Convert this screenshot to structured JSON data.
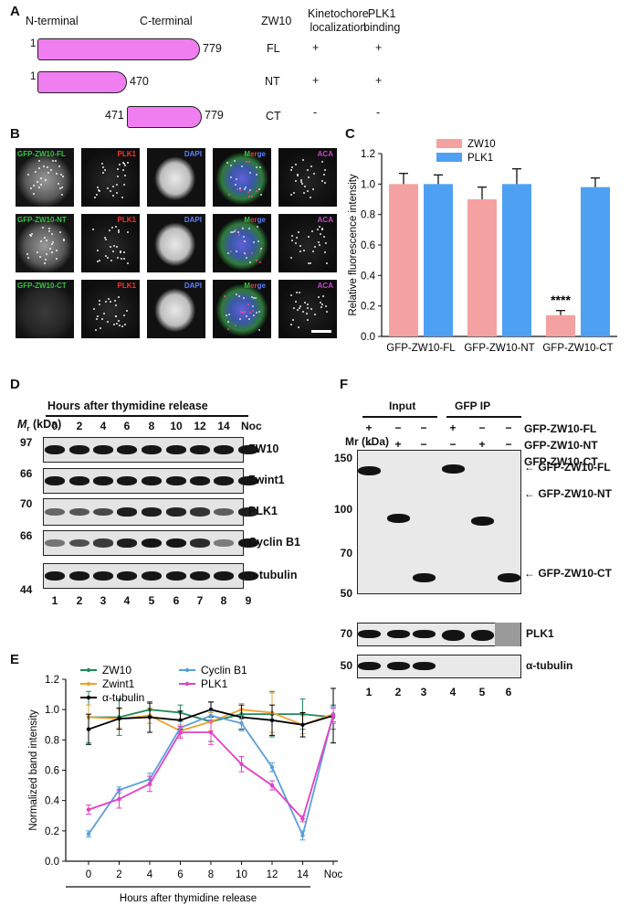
{
  "panelA": {
    "label": "A",
    "n_term": "N-terminal",
    "c_term": "C-terminal",
    "headers": [
      "ZW10",
      "Kinetochore\nlocalization",
      "PLK1\nbinding"
    ],
    "rows": [
      {
        "start": "1",
        "end": "779",
        "name": "FL",
        "kt": "+",
        "plk": "+"
      },
      {
        "start": "1",
        "end": "470",
        "name": "NT",
        "kt": "+",
        "plk": "+"
      },
      {
        "start": "471",
        "end": "779",
        "name": "CT",
        "kt": "-",
        "plk": "-"
      }
    ]
  },
  "panelB": {
    "label": "B",
    "rows": [
      "GFP-ZW10-FL",
      "GFP-ZW10-NT",
      "GFP-ZW10-CT"
    ],
    "channels": [
      "PLK1",
      "DAPI",
      "Merge",
      "ACA"
    ]
  },
  "panelD": {
    "label": "D",
    "title": "Hours after thymidine release",
    "mr": "Mr (kDa)",
    "timepoints": [
      "0",
      "2",
      "4",
      "6",
      "8",
      "10",
      "12",
      "14",
      "Noc"
    ],
    "markers": [
      "97",
      "66",
      "70",
      "66",
      "44"
    ],
    "proteins": [
      "ZW10",
      "Zwint1",
      "PLK1",
      "Cyclin B1",
      "α-tubulin"
    ],
    "lanes": [
      "1",
      "2",
      "3",
      "4",
      "5",
      "6",
      "7",
      "8",
      "9"
    ]
  },
  "panelF": {
    "label": "F",
    "input": "Input",
    "gfpip": "GFP IP",
    "mr": "Mr (kDa)",
    "row_labels": [
      "GFP-ZW10-FL",
      "GFP-ZW10-NT",
      "GFP-ZW10-CT"
    ],
    "signs": [
      [
        "+",
        "−",
        "−",
        "+",
        "−",
        "−"
      ],
      [
        "−",
        "+",
        "−",
        "−",
        "+",
        "−"
      ],
      [
        "−",
        "−",
        "+",
        "−",
        "−",
        "+"
      ]
    ],
    "markers": [
      "150",
      "100",
      "70",
      "50"
    ],
    "arrows": [
      "GFP-ZW10-FL",
      "GFP-ZW10-NT",
      "GFP-ZW10-CT"
    ],
    "small_markers": [
      "70",
      "50"
    ],
    "small_labels": [
      "PLK1",
      "α-tubulin"
    ],
    "lanes": [
      "1",
      "2",
      "3",
      "4",
      "5",
      "6"
    ]
  },
  "chart_data": [
    {
      "panel": "C",
      "type": "bar",
      "categories": [
        "GFP-ZW10-FL",
        "GFP-ZW10-NT",
        "GFP-ZW10-CT"
      ],
      "series": [
        {
          "name": "ZW10",
          "values": [
            1.0,
            0.9,
            0.14
          ],
          "errors": [
            0.07,
            0.08,
            0.03
          ],
          "color": "#f4a1a1"
        },
        {
          "name": "PLK1",
          "values": [
            1.0,
            1.0,
            0.98
          ],
          "errors": [
            0.06,
            0.1,
            0.06
          ],
          "color": "#4ea1f2"
        }
      ],
      "annotation": "****",
      "ylabel": "Relative fluorescence intensity",
      "ylim": [
        0,
        1.2
      ],
      "yticks": [
        "0.0",
        "0.2",
        "0.4",
        "0.6",
        "0.8",
        "1.0",
        "1.2"
      ]
    },
    {
      "panel": "E",
      "type": "line",
      "x": [
        "0",
        "2",
        "4",
        "6",
        "8",
        "10",
        "12",
        "14",
        "Noc"
      ],
      "series": [
        {
          "name": "ZW10",
          "color": "#1f8a5a",
          "values": [
            0.95,
            0.95,
            1.0,
            0.98,
            0.92,
            0.97,
            0.97,
            0.97,
            0.95
          ],
          "errors": [
            0.17,
            0.12,
            0.04,
            0.05,
            0.13,
            0.03,
            0.15,
            0.1,
            0.08
          ]
        },
        {
          "name": "Zwint1",
          "color": "#f0a030",
          "values": [
            0.95,
            0.94,
            0.96,
            0.86,
            0.92,
            1.0,
            0.98,
            0.9,
            0.97
          ],
          "errors": [
            0.08,
            0.06,
            0.05,
            0.04,
            0.06,
            0.04,
            0.13,
            0.06,
            0.05
          ]
        },
        {
          "name": "α-tubulin",
          "color": "#000000",
          "values": [
            0.87,
            0.94,
            0.95,
            0.93,
            1.0,
            0.95,
            0.93,
            0.9,
            0.96
          ],
          "errors": [
            0.1,
            0.07,
            0.1,
            0.06,
            0.05,
            0.08,
            0.1,
            0.08,
            0.18
          ]
        },
        {
          "name": "Cyclin B1",
          "color": "#5aa0d8",
          "values": [
            0.18,
            0.47,
            0.54,
            0.88,
            0.96,
            0.91,
            0.62,
            0.17,
            0.97
          ],
          "errors": [
            0.02,
            0.02,
            0.04,
            0.04,
            0.03,
            0.05,
            0.03,
            0.03,
            0.05
          ]
        },
        {
          "name": "PLK1",
          "color": "#e040c8",
          "values": [
            0.34,
            0.41,
            0.51,
            0.85,
            0.85,
            0.64,
            0.5,
            0.28,
            0.96
          ],
          "errors": [
            0.03,
            0.06,
            0.05,
            0.04,
            0.08,
            0.05,
            0.03,
            0.02,
            0.05
          ]
        }
      ],
      "ylabel": "Normalized band intensity",
      "xlabel": "Hours after thymidine release",
      "ylim": [
        0,
        1.2
      ],
      "yticks": [
        "0.0",
        "0.2",
        "0.4",
        "0.6",
        "0.8",
        "1.0",
        "1.2"
      ]
    }
  ]
}
